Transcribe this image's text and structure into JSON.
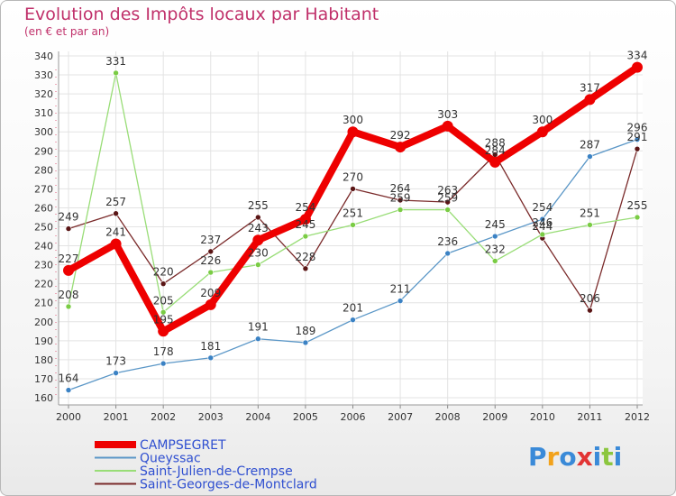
{
  "chart_data": {
    "type": "line",
    "title": "Evolution des Impôts locaux par Habitant",
    "subtitle": "(en € et par an)",
    "xlabel": "",
    "ylabel": "",
    "ylim": [
      160,
      340
    ],
    "ytick_step": 10,
    "grid": true,
    "legend_position": "bottom-left",
    "x": [
      "2000",
      "2001",
      "2002",
      "2003",
      "2004",
      "2005",
      "2006",
      "2007",
      "2008",
      "2009",
      "2010",
      "2011",
      "2012"
    ],
    "series": [
      {
        "name": "CAMPSEGRET",
        "color": "#ee0000",
        "emphasis": true,
        "values": [
          227,
          241,
          195,
          209,
          243,
          254,
          300,
          292,
          303,
          284,
          300,
          317,
          334
        ],
        "labels": [
          "227",
          "241",
          "195",
          "209",
          "243",
          "254",
          "300",
          "292",
          "303",
          "284",
          "300",
          "317",
          "334"
        ]
      },
      {
        "name": "Queyssac",
        "color": "#5b97c7",
        "marker": "#3b82c4",
        "values": [
          164,
          173,
          178,
          181,
          191,
          189,
          201,
          211,
          236,
          245,
          254,
          287,
          296
        ],
        "labels": [
          "164",
          "173",
          "178",
          "181",
          "191",
          "189",
          "201",
          "211",
          "236",
          "245",
          "254",
          "287",
          "296"
        ]
      },
      {
        "name": "Saint-Julien-de-Crempse",
        "color": "#99dd77",
        "marker": "#7acc44",
        "values": [
          208,
          331,
          205,
          226,
          230,
          245,
          251,
          259,
          259,
          232,
          246,
          251,
          255
        ],
        "labels": [
          "208",
          "331",
          "205",
          "226",
          "230",
          "245",
          "251",
          "259",
          "259",
          "232",
          "246",
          "251",
          "255"
        ]
      },
      {
        "name": "Saint-Georges-de-Montclard",
        "color": "#7a2a2a",
        "marker": "#5a1515",
        "values": [
          249,
          257,
          220,
          237,
          255,
          228,
          270,
          264,
          263,
          288,
          244,
          206,
          291
        ],
        "labels": [
          "249",
          "257",
          "220",
          "237",
          "255",
          "228",
          "270",
          "264",
          "263",
          "288",
          "244",
          "206",
          "291"
        ]
      }
    ]
  },
  "logo": {
    "text": "Proxiti",
    "letters": [
      "P",
      "r",
      "o",
      "x",
      "i",
      "t",
      "i"
    ],
    "colors": [
      "#3a8ad8",
      "#f2a21b",
      "#3a8ad8",
      "#e23434",
      "#3a8ad8",
      "#8cc63f",
      "#3a8ad8"
    ]
  }
}
